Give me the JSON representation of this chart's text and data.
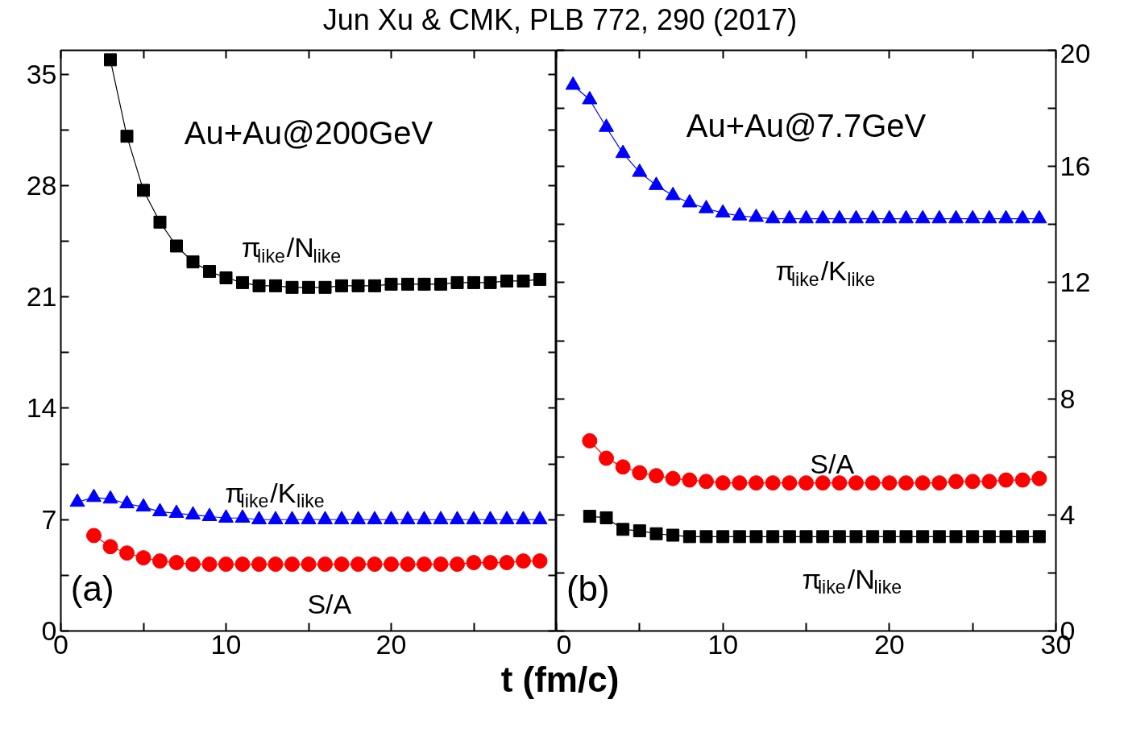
{
  "chart_data": [
    {
      "type": "line",
      "title": "Jun Xu & CMK, PLB 772, 290 (2017)",
      "xlabel": "t (fm/c)",
      "annotations": [
        "Au+Au@200GeV",
        "(a)"
      ],
      "xlim": [
        0,
        30
      ],
      "xticks": [
        0,
        {
          "value": 5,
          "label": null
        },
        10,
        {
          "value": 15,
          "label": null
        },
        20,
        {
          "value": 25,
          "label": null
        },
        {
          "value": 30,
          "label": null
        }
      ],
      "ylim": [
        0,
        36.5
      ],
      "yticks": [
        0,
        {
          "value": 3.5,
          "label": null
        },
        7,
        {
          "value": 10.5,
          "label": null
        },
        14,
        {
          "value": 17.5,
          "label": null
        },
        21,
        {
          "value": 24.5,
          "label": null
        },
        28,
        {
          "value": 31.5,
          "label": null
        },
        35
      ],
      "grid": false,
      "line_style": "solid",
      "series": [
        {
          "name": "π$_{like}$/N$_{like}$",
          "color": "#000000",
          "marker": "square",
          "x": [
            3,
            4,
            5,
            6,
            7,
            8,
            9,
            10,
            11,
            12,
            13,
            14,
            15,
            16,
            17,
            18,
            19,
            20,
            21,
            22,
            23,
            24,
            25,
            26,
            27,
            28,
            29
          ],
          "values": [
            35.9,
            31.1,
            27.7,
            25.7,
            24.2,
            23.2,
            22.6,
            22.2,
            21.9,
            21.7,
            21.7,
            21.6,
            21.6,
            21.6,
            21.7,
            21.7,
            21.7,
            21.8,
            21.8,
            21.8,
            21.8,
            21.9,
            21.9,
            21.9,
            22.0,
            22.0,
            22.1
          ]
        },
        {
          "name": "π$_{like}$/K$_{like}$",
          "color": "#0000ff",
          "marker": "triangle",
          "x": [
            1,
            2,
            3,
            4,
            5,
            6,
            7,
            8,
            9,
            10,
            11,
            12,
            13,
            14,
            15,
            16,
            17,
            18,
            19,
            20,
            21,
            22,
            23,
            24,
            25,
            26,
            27,
            28,
            29
          ],
          "values": [
            8.1,
            8.4,
            8.3,
            8.0,
            7.8,
            7.5,
            7.4,
            7.3,
            7.2,
            7.1,
            7.1,
            7.0,
            7.0,
            7.0,
            7.0,
            7.0,
            7.0,
            7.0,
            7.0,
            7.0,
            7.0,
            7.0,
            7.0,
            7.0,
            7.0,
            7.0,
            7.0,
            7.0,
            7.0
          ]
        },
        {
          "name": "S/A",
          "color": "#ff0000",
          "marker": "circle",
          "x": [
            2,
            3,
            4,
            5,
            6,
            7,
            8,
            9,
            10,
            11,
            12,
            13,
            14,
            15,
            16,
            17,
            18,
            19,
            20,
            21,
            22,
            23,
            24,
            25,
            26,
            27,
            28,
            29
          ],
          "values": [
            6.0,
            5.3,
            4.9,
            4.6,
            4.4,
            4.3,
            4.2,
            4.2,
            4.2,
            4.2,
            4.2,
            4.2,
            4.2,
            4.2,
            4.2,
            4.2,
            4.2,
            4.2,
            4.2,
            4.2,
            4.2,
            4.2,
            4.2,
            4.3,
            4.3,
            4.3,
            4.4,
            4.4
          ]
        }
      ]
    },
    {
      "type": "line",
      "annotations": [
        "Au+Au@7.7GeV",
        "(b)"
      ],
      "xlim": [
        0,
        30
      ],
      "xticks": [
        0,
        {
          "value": 5,
          "label": null
        },
        10,
        {
          "value": 15,
          "label": null
        },
        20,
        {
          "value": 25,
          "label": null
        },
        30
      ],
      "ylim": [
        0,
        20
      ],
      "yticks": [
        0,
        {
          "value": 2,
          "label": null
        },
        4,
        {
          "value": 6,
          "label": null
        },
        8,
        {
          "value": 10,
          "label": null
        },
        12,
        {
          "value": 14,
          "label": null
        },
        16,
        {
          "value": 18,
          "label": null
        },
        20
      ],
      "grid": false,
      "line_style": "solid",
      "series": [
        {
          "name": "π$_{like}$/K$_{like}$",
          "color": "#0000ff",
          "marker": "triangle",
          "x": [
            1,
            2,
            3,
            4,
            5,
            6,
            7,
            8,
            9,
            10,
            11,
            12,
            13,
            14,
            15,
            16,
            17,
            18,
            19,
            20,
            21,
            22,
            23,
            24,
            25,
            26,
            27,
            28,
            29
          ],
          "values": [
            18.8,
            18.3,
            17.35,
            16.45,
            15.8,
            15.35,
            15.0,
            14.75,
            14.55,
            14.4,
            14.3,
            14.25,
            14.2,
            14.2,
            14.2,
            14.2,
            14.2,
            14.2,
            14.2,
            14.2,
            14.2,
            14.2,
            14.2,
            14.2,
            14.2,
            14.2,
            14.2,
            14.2,
            14.2
          ]
        },
        {
          "name": "S/A",
          "color": "#ff0000",
          "marker": "circle",
          "x": [
            2,
            3,
            4,
            5,
            6,
            7,
            8,
            9,
            10,
            11,
            12,
            13,
            14,
            15,
            16,
            17,
            18,
            19,
            20,
            21,
            22,
            23,
            24,
            25,
            26,
            27,
            28,
            29
          ],
          "values": [
            6.55,
            5.95,
            5.65,
            5.45,
            5.35,
            5.25,
            5.2,
            5.15,
            5.1,
            5.1,
            5.1,
            5.1,
            5.1,
            5.1,
            5.1,
            5.1,
            5.1,
            5.1,
            5.1,
            5.1,
            5.1,
            5.1,
            5.15,
            5.15,
            5.15,
            5.2,
            5.2,
            5.25
          ]
        },
        {
          "name": "π$_{like}$/N$_{like}$",
          "color": "#000000",
          "marker": "square",
          "x": [
            2,
            3,
            4,
            5,
            6,
            7,
            8,
            9,
            10,
            11,
            12,
            13,
            14,
            15,
            16,
            17,
            18,
            19,
            20,
            21,
            22,
            23,
            24,
            25,
            26,
            27,
            28,
            29
          ],
          "values": [
            3.95,
            3.9,
            3.5,
            3.45,
            3.35,
            3.3,
            3.25,
            3.25,
            3.25,
            3.25,
            3.25,
            3.25,
            3.25,
            3.25,
            3.25,
            3.25,
            3.25,
            3.25,
            3.25,
            3.25,
            3.25,
            3.25,
            3.25,
            3.25,
            3.25,
            3.25,
            3.25,
            3.25
          ]
        }
      ]
    }
  ]
}
